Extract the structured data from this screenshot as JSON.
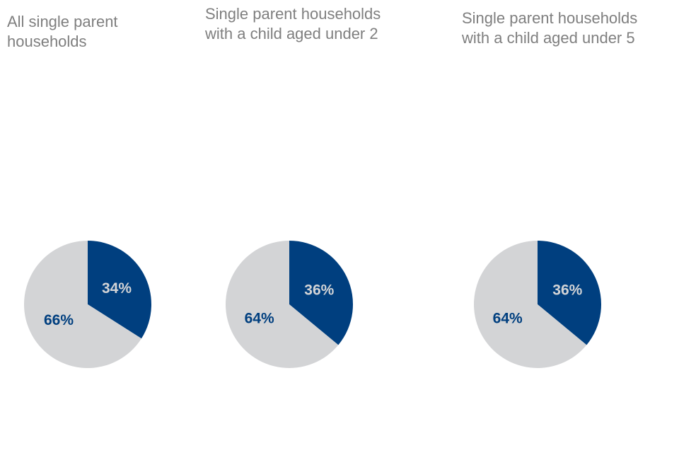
{
  "chart_data": [
    {
      "type": "pie",
      "title": "All single parent\nhouseholds",
      "slices": [
        {
          "value": 34,
          "label": "34%",
          "color": "#003f7f",
          "label_color": "#d3d4d6"
        },
        {
          "value": 66,
          "label": "66%",
          "color": "#d3d4d6",
          "label_color": "#003f7f"
        }
      ]
    },
    {
      "type": "pie",
      "title": "Single parent households\nwith a child aged under 2",
      "slices": [
        {
          "value": 36,
          "label": "36%",
          "color": "#003f7f",
          "label_color": "#d3d4d6"
        },
        {
          "value": 64,
          "label": "64%",
          "color": "#d3d4d6",
          "label_color": "#003f7f"
        }
      ]
    },
    {
      "type": "pie",
      "title": "Single parent households\nwith a child aged under 5",
      "slices": [
        {
          "value": 36,
          "label": "36%",
          "color": "#003f7f",
          "label_color": "#d3d4d6"
        },
        {
          "value": 64,
          "label": "64%",
          "color": "#d3d4d6",
          "label_color": "#003f7f"
        }
      ]
    }
  ]
}
